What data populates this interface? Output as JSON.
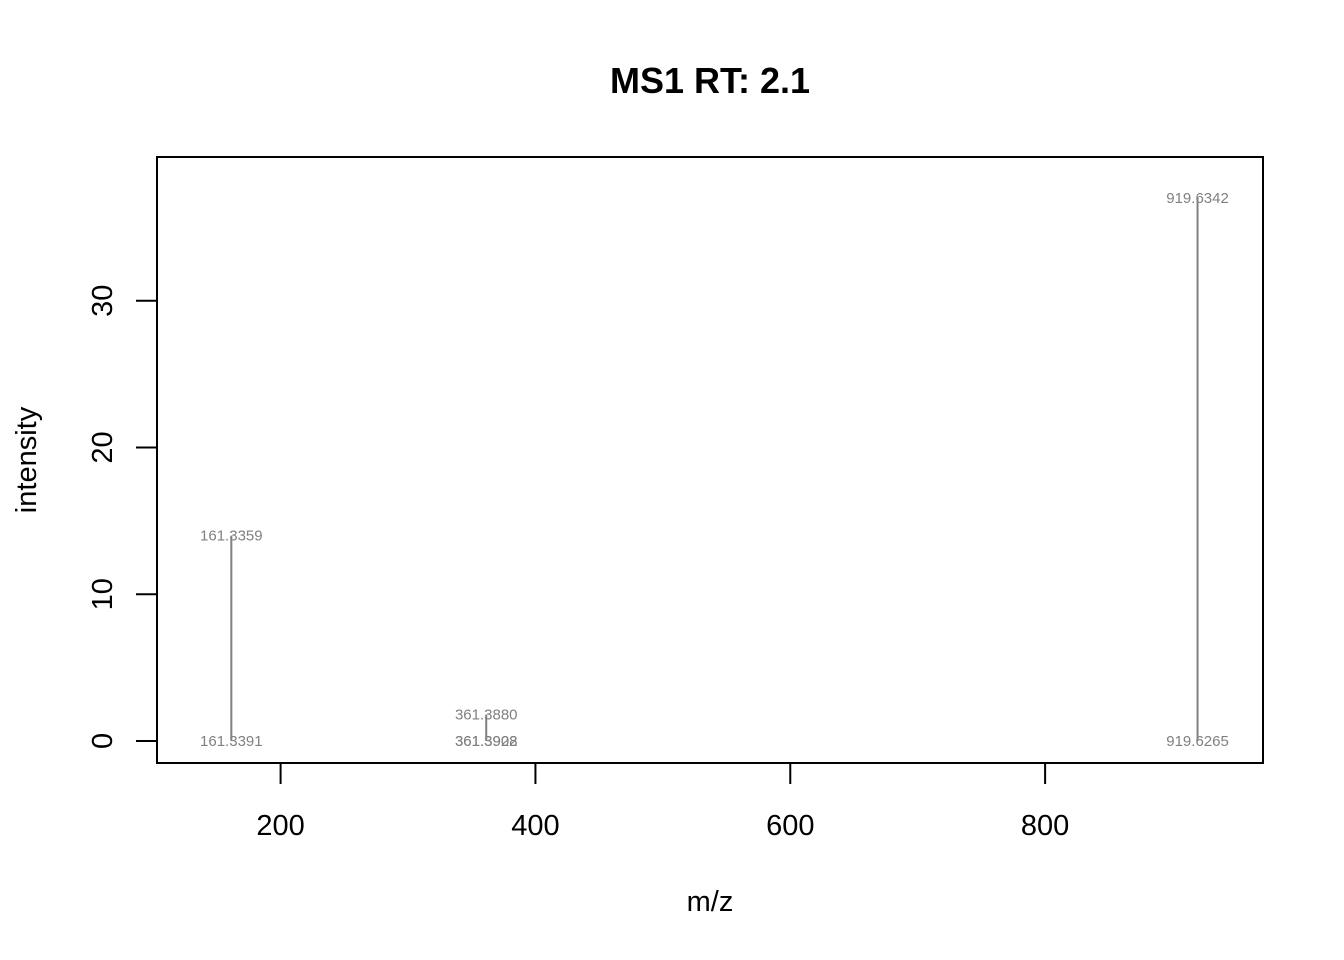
{
  "chart_data": {
    "type": "bar",
    "subtype": "mass-spectrum-stick",
    "title": "MS1 RT: 2.1",
    "xlabel": "m/z",
    "ylabel": "intensity",
    "xlim": [
      103,
      971
    ],
    "ylim": [
      -1.5,
      39.8
    ],
    "xticks": [
      200,
      400,
      600,
      800
    ],
    "yticks": [
      0,
      10,
      20,
      30
    ],
    "grid": false,
    "legend": "none",
    "colors": {
      "stick": "#808080",
      "label": "#808080",
      "axis": "#000000"
    },
    "peaks": [
      {
        "mz": 161.3359,
        "intensity": 14.0,
        "label": "161.3359"
      },
      {
        "mz": 161.3391,
        "intensity": 0.0,
        "label": "161.3391"
      },
      {
        "mz": 361.388,
        "intensity": 1.8,
        "label": "361.3880"
      },
      {
        "mz": 361.3928,
        "intensity": 0.0,
        "label": "361.3928"
      },
      {
        "mz": 361.3902,
        "intensity": 0.0,
        "label": "361.3902"
      },
      {
        "mz": 919.6342,
        "intensity": 37.0,
        "label": "919.6342"
      },
      {
        "mz": 919.6265,
        "intensity": 0.0,
        "label": "919.6265"
      }
    ]
  }
}
